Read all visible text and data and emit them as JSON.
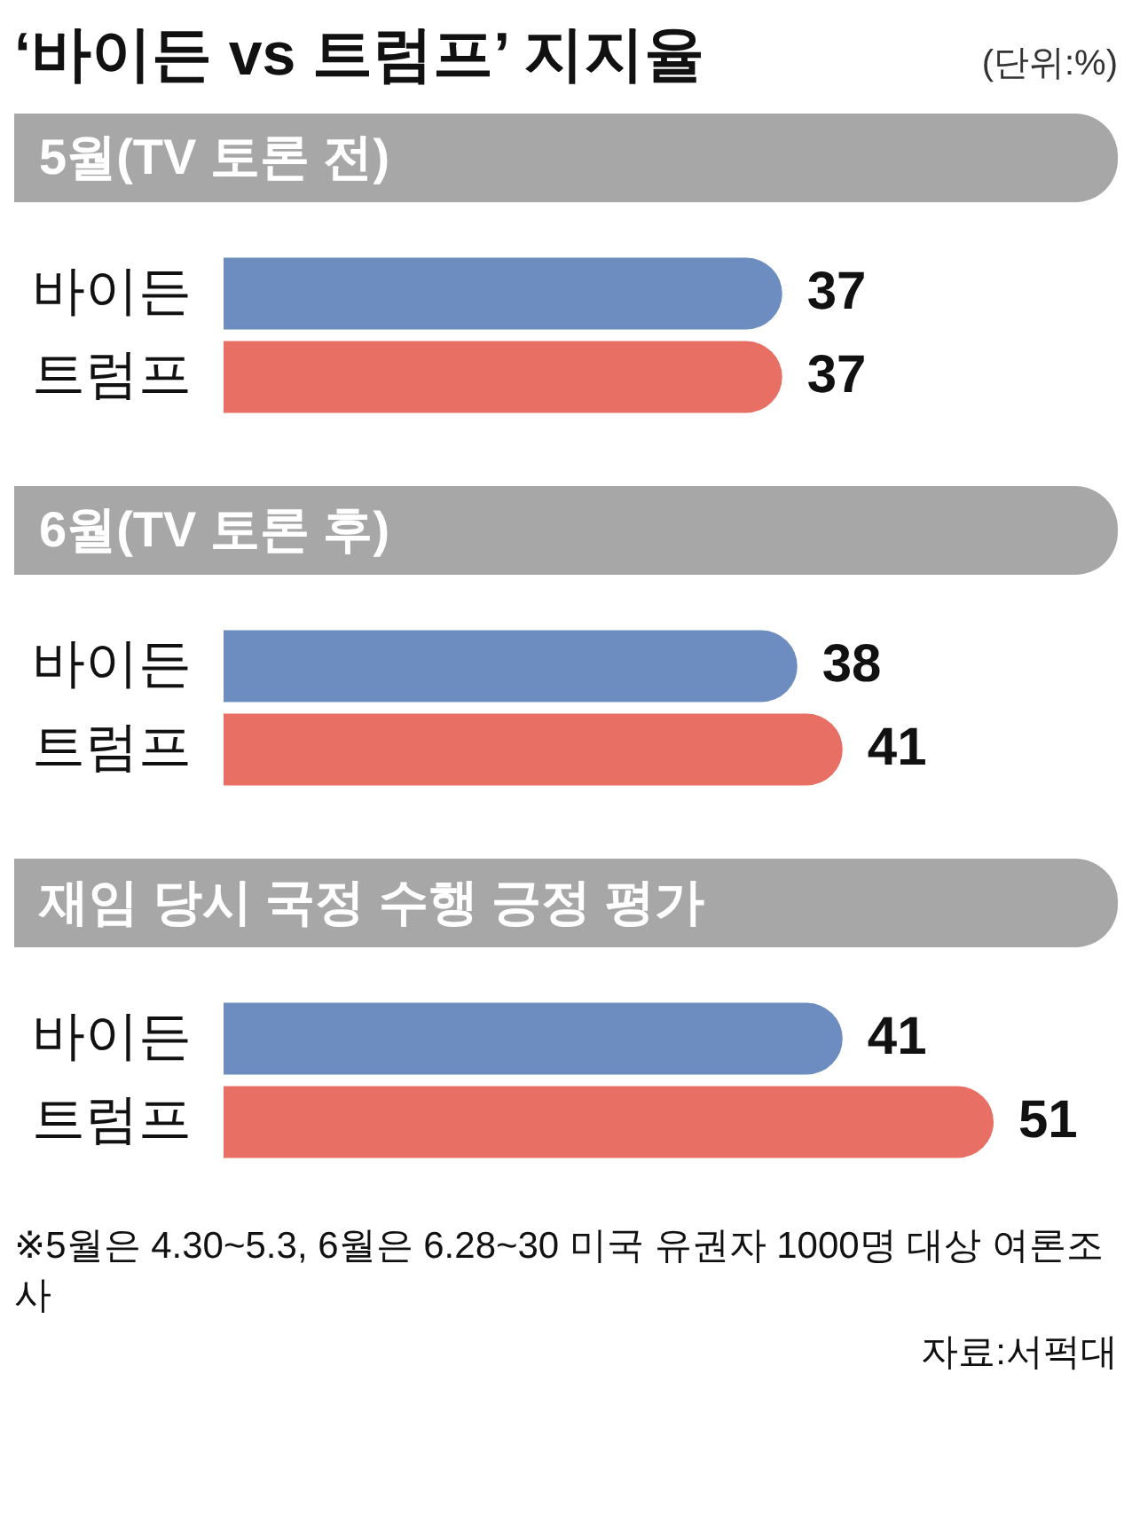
{
  "chart_data": [
    {
      "type": "other",
      "title": "‘바이든 vs 트럼프’ 지지율",
      "subtitle": "(단위:%)"
    },
    {
      "type": "bar",
      "orientation": "horizontal",
      "title": "5월(TV 토론 전)",
      "categories": [
        "바이든",
        "트럼프"
      ],
      "values": [
        37,
        37
      ],
      "colors": [
        "#6d8cbf",
        "#e86f63"
      ],
      "data_labels": true
    },
    {
      "type": "bar",
      "orientation": "horizontal",
      "title": "6월(TV 토론 후)",
      "categories": [
        "바이든",
        "트럼프"
      ],
      "values": [
        38,
        41
      ],
      "colors": [
        "#6d8cbf",
        "#e86f63"
      ],
      "data_labels": true
    },
    {
      "type": "bar",
      "orientation": "horizontal",
      "title": "재임 당시 국정 수행 긍정 평가",
      "categories": [
        "바이든",
        "트럼프"
      ],
      "values": [
        41,
        51
      ],
      "colors": [
        "#6d8cbf",
        "#e86f63"
      ],
      "data_labels": true,
      "annotations": [
        "※5월은 4.30~5.3, 6월은 6.28~30 미국 유권자 1000명 대상 여론조사",
        "자료:서퍽대"
      ]
    }
  ]
}
